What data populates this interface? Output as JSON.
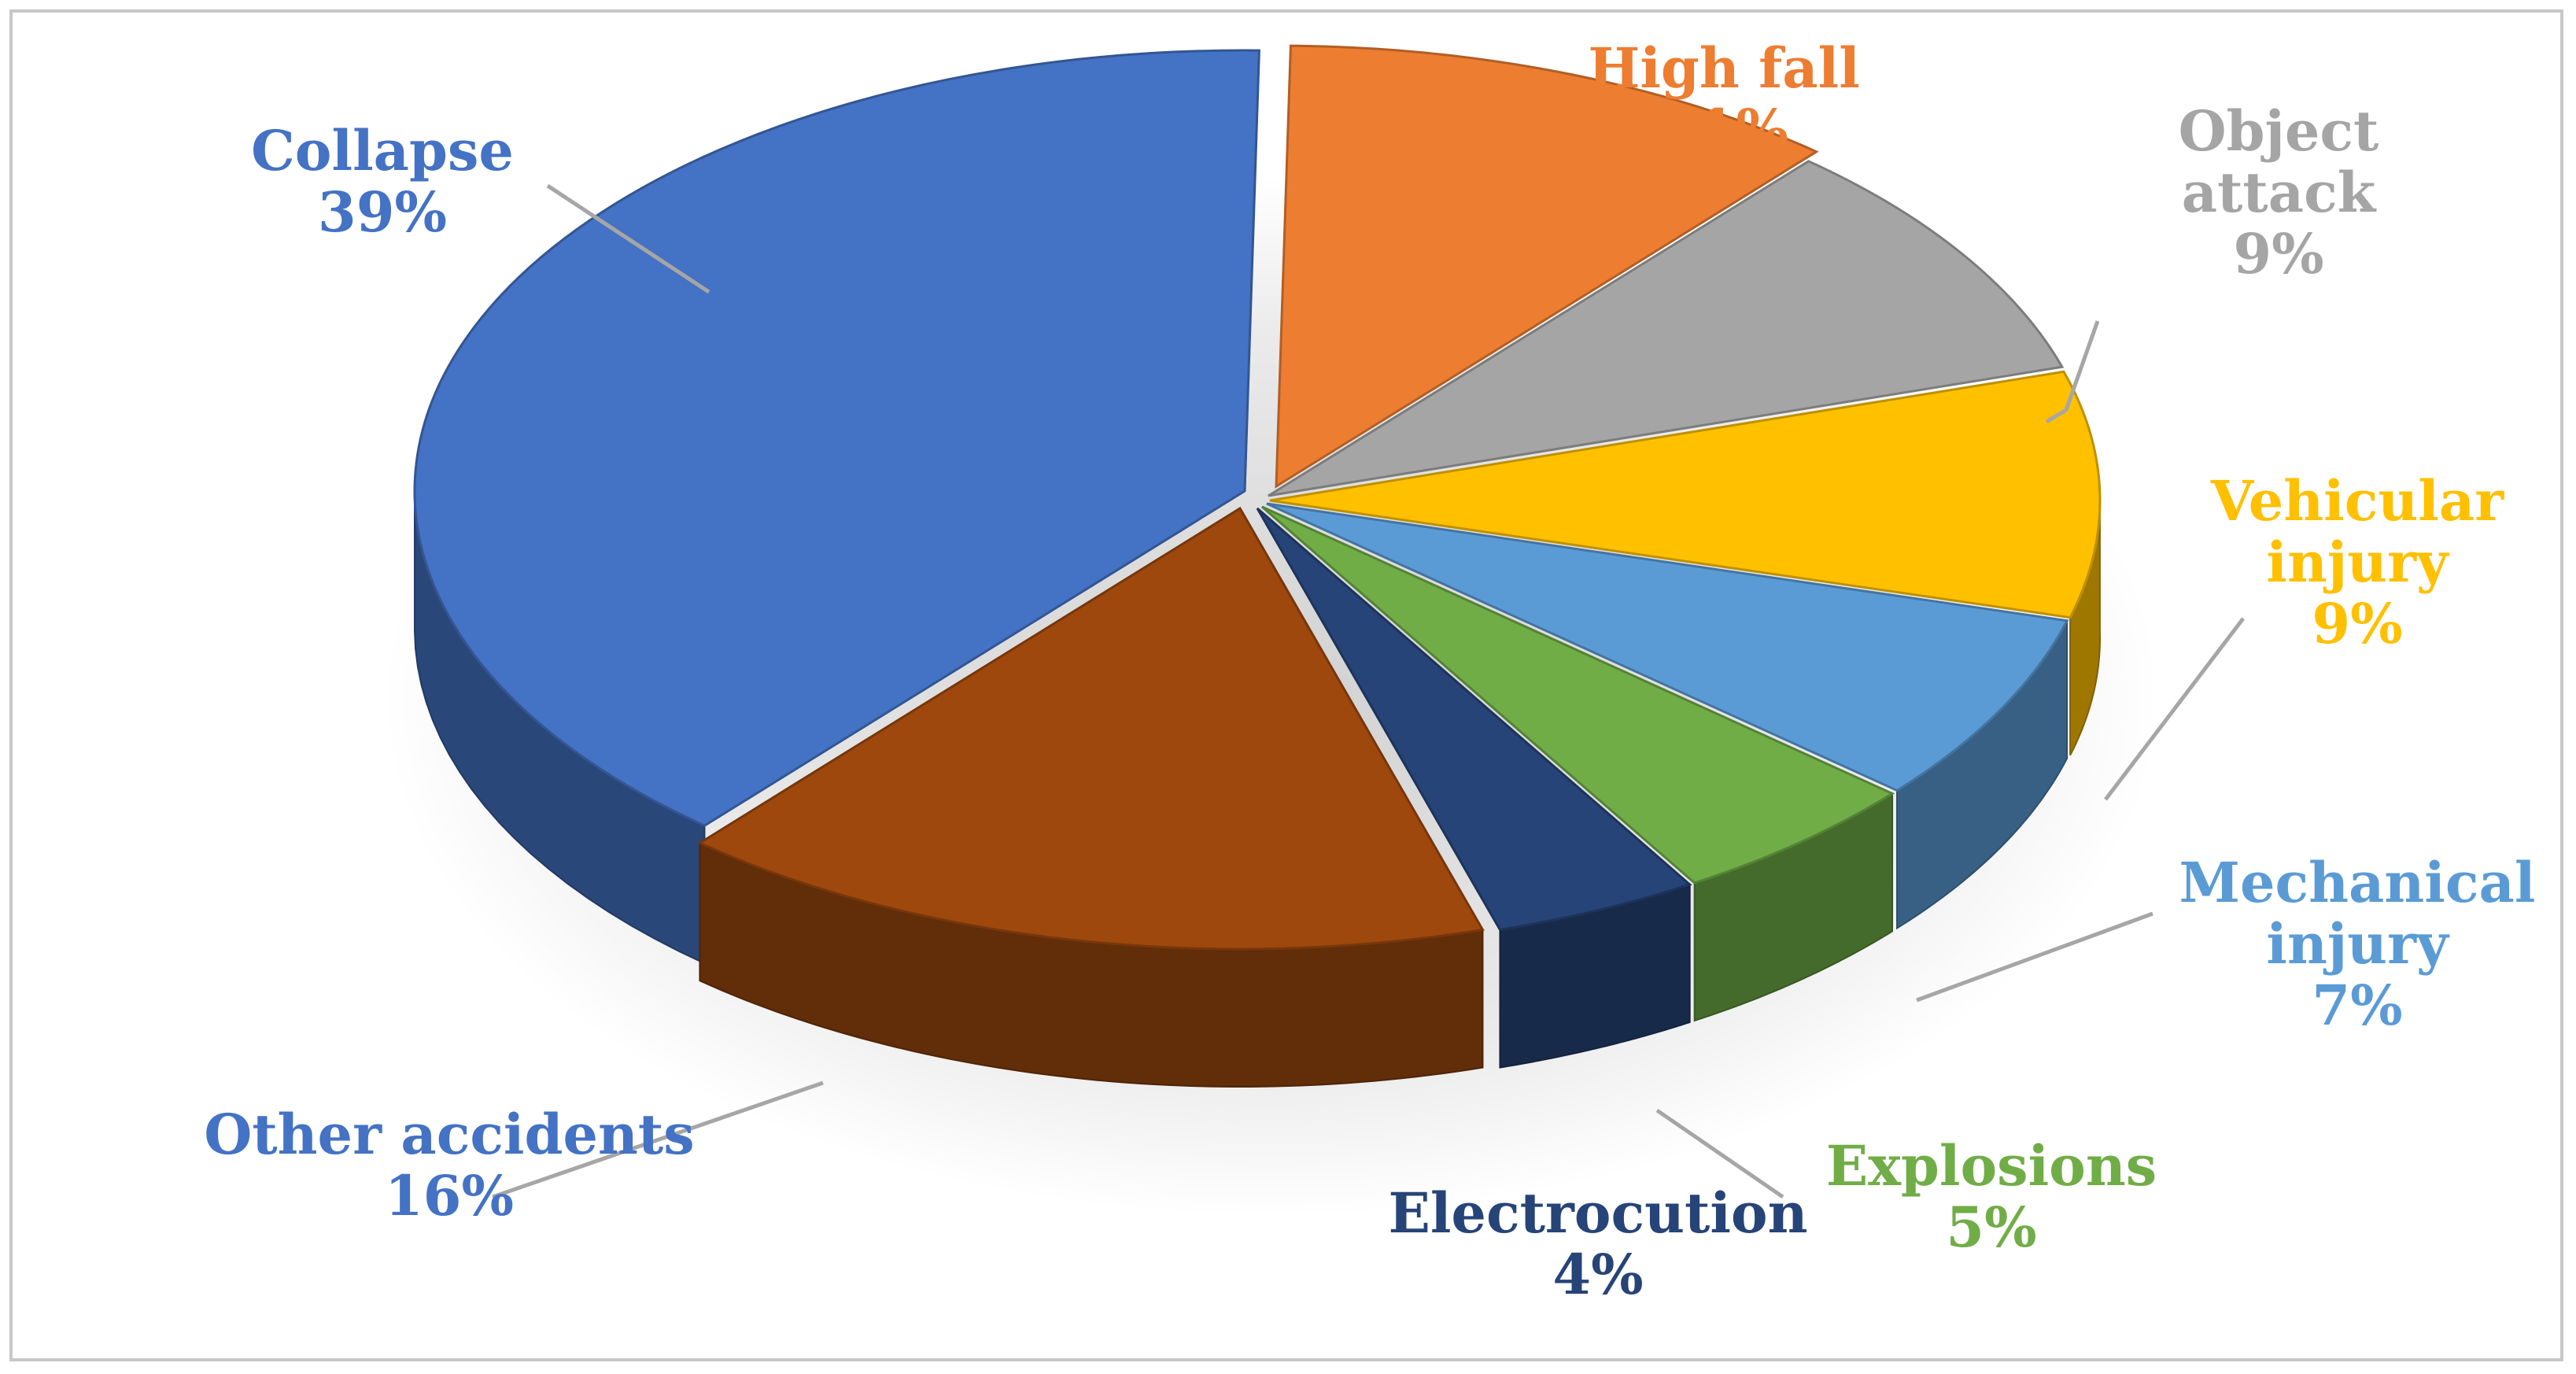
{
  "chart_data": {
    "type": "pie",
    "style": "3d",
    "legend": "none",
    "slices": [
      {
        "name": "Collapse",
        "label_lines": [
          "Collapse"
        ],
        "value": 39,
        "value_label": "39%",
        "color": "#4472C4",
        "label_color": "#4472C4"
      },
      {
        "name": "High fall",
        "label_lines": [
          "High fall"
        ],
        "value": 11,
        "value_label": "11%",
        "color": "#ED7D31",
        "label_color": "#ED7D31"
      },
      {
        "name": "Object attack",
        "label_lines": [
          "Object",
          "attack"
        ],
        "value": 9,
        "value_label": "9%",
        "color": "#A5A5A5",
        "label_color": "#A5A5A5"
      },
      {
        "name": "Vehicular injury",
        "label_lines": [
          "Vehicular",
          "injury"
        ],
        "value": 9,
        "value_label": "9%",
        "color": "#FFC000",
        "label_color": "#FFC000"
      },
      {
        "name": "Mechanical injury",
        "label_lines": [
          "Mechanical",
          "injury"
        ],
        "value": 7,
        "value_label": "7%",
        "color": "#5B9BD5",
        "label_color": "#5B9BD5"
      },
      {
        "name": "Explosions",
        "label_lines": [
          "Explosions"
        ],
        "value": 5,
        "value_label": "5%",
        "color": "#70AD47",
        "label_color": "#70AD47"
      },
      {
        "name": "Electrocution",
        "label_lines": [
          "Electrocution"
        ],
        "value": 4,
        "value_label": "4%",
        "color": "#264478",
        "label_color": "#264478"
      },
      {
        "name": "Other accidents",
        "label_lines": [
          "Other accidents"
        ],
        "value": 16,
        "value_label": "16%",
        "color": "#9E480E",
        "label_color": "#4472C4"
      }
    ]
  }
}
